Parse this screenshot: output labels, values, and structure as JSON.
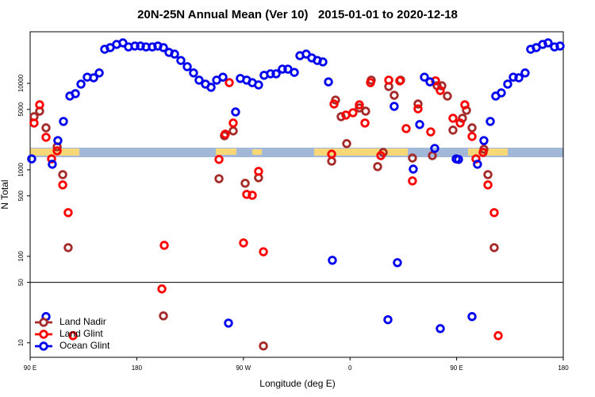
{
  "chart_data": {
    "type": "scatter",
    "title": "20N-25N Annual Mean (Ver 10)   2015-01-01 to 2020-12-18",
    "x_label": "Longitude (deg E)",
    "y_label": "N Total",
    "log_y": true,
    "xlim": [
      90,
      540
    ],
    "xticks": [
      {
        "value": 90,
        "label": "90 E"
      },
      180,
      {
        "value": 270,
        "label": "90 W"
      },
      {
        "value": 360,
        "label": "0"
      },
      {
        "value": 450,
        "label": "90 E"
      },
      {
        "value": 540,
        "label": "180"
      }
    ],
    "ylim": [
      6.8,
      39500
    ],
    "yticks": [
      10,
      50,
      100,
      500,
      1000,
      5000,
      10000
    ],
    "panel_break": 50,
    "legend": "bottom-left",
    "series": [
      {
        "name": "Land Nadir",
        "color": "#a52a2a",
        "x": [
          93.3,
          98.0,
          103.4,
          112.8,
          117.5,
          122.1,
          202.5,
          249.4,
          254.0,
          261.4,
          271.5,
          282.8,
          286.9,
          344.5,
          347.8,
          352.5,
          357.2,
          367.9,
          373.2,
          377.9,
          383.3,
          388.0,
          392.7,
          397.3,
          402.7,
          412.7,
          417.4,
          429.5,
          433.5,
          437.5,
          442.2,
          446.9,
          454.9,
          458.3,
          463.0,
          473.0,
          476.4,
          481.7
        ],
        "values": [
          4120,
          4770,
          3060,
          1850,
          880,
          126,
          20.5,
          790,
          2480,
          2820,
          700,
          810,
          9.2,
          1260,
          6410,
          4120,
          2010,
          5200,
          4770,
          10900,
          1090,
          1590,
          9190,
          7280,
          10900,
          1370,
          5770,
          1460,
          9380,
          9380,
          7130,
          2880,
          3950,
          4880,
          3060,
          1730,
          880,
          126
        ]
      },
      {
        "name": "Land Glint",
        "color": "#ff0000",
        "x": [
          93.3,
          98.0,
          103.4,
          108.1,
          112.8,
          117.5,
          122.1,
          126.2,
          201.2,
          203.2,
          249.4,
          254.7,
          258.1,
          261.4,
          270.1,
          272.8,
          277.5,
          282.8,
          286.9,
          344.5,
          346.5,
          356.5,
          362.5,
          367.9,
          372.6,
          377.3,
          386.0,
          392.7,
          402.0,
          407.4,
          412.7,
          417.4,
          428.1,
          432.2,
          436.2,
          446.9,
          453.0,
          456.9,
          463.0,
          466.3,
          472.3,
          476.4,
          481.7,
          485.1
        ],
        "values": [
          3480,
          5650,
          2380,
          1340,
          1660,
          670,
          320,
          12.1,
          42,
          134,
          1320,
          2590,
          10200,
          3480,
          143,
          520,
          508,
          960,
          113,
          1520,
          5770,
          4300,
          4580,
          5650,
          3480,
          10200,
          1460,
          10900,
          10700,
          3000,
          745,
          5080,
          2750,
          10700,
          8260,
          3950,
          3480,
          5650,
          2430,
          1340,
          1590,
          670,
          320,
          12.1
        ]
      },
      {
        "name": "Ocean Glint",
        "color": "#0000ee",
        "x": [
          91.3,
          103.4,
          108.7,
          113.4,
          118.1,
          123.5,
          128.2,
          132.9,
          138.2,
          143.6,
          148.3,
          152.9,
          157.6,
          163.0,
          168.3,
          173.0,
          178.4,
          183.1,
          187.8,
          193.1,
          197.8,
          202.5,
          207.2,
          211.9,
          217.2,
          222.6,
          227.9,
          232.6,
          238.0,
          242.7,
          247.4,
          252.7,
          257.4,
          263.4,
          267.4,
          272.8,
          277.5,
          282.8,
          287.5,
          292.9,
          297.6,
          302.9,
          307.6,
          313.0,
          317.7,
          323.0,
          327.7,
          332.4,
          337.1,
          341.8,
          345.1,
          392.0,
          397.3,
          400.0,
          413.4,
          418.8,
          422.8,
          427.5,
          431.5,
          436.2,
          449.6,
          451.6,
          463.0,
          467.6,
          473.0,
          478.4,
          483.0,
          487.7,
          493.1,
          497.8,
          502.5,
          507.8,
          512.5,
          517.2,
          522.6,
          527.2,
          532.6,
          537.3
        ],
        "values": [
          1340,
          20.1,
          1160,
          2180,
          3630,
          7130,
          7600,
          9800,
          11800,
          11600,
          13200,
          24800,
          25900,
          28200,
          29400,
          26400,
          27000,
          27000,
          26400,
          26400,
          27000,
          25900,
          22800,
          21800,
          18400,
          15600,
          13200,
          10900,
          9800,
          9000,
          10900,
          11800,
          16.9,
          4670,
          11400,
          10900,
          10200,
          9600,
          12400,
          12900,
          12900,
          14600,
          14600,
          13400,
          20900,
          21800,
          19700,
          18400,
          17700,
          10400,
          90,
          18.5,
          5420,
          84.5,
          1020,
          3340,
          11800,
          10400,
          1770,
          14.6,
          1340,
          1320,
          20.1,
          1160,
          2180,
          3630,
          7130,
          7760,
          9800,
          11800,
          11600,
          13200,
          24800,
          25900,
          28200,
          29400,
          26400,
          27000
        ]
      }
    ]
  }
}
